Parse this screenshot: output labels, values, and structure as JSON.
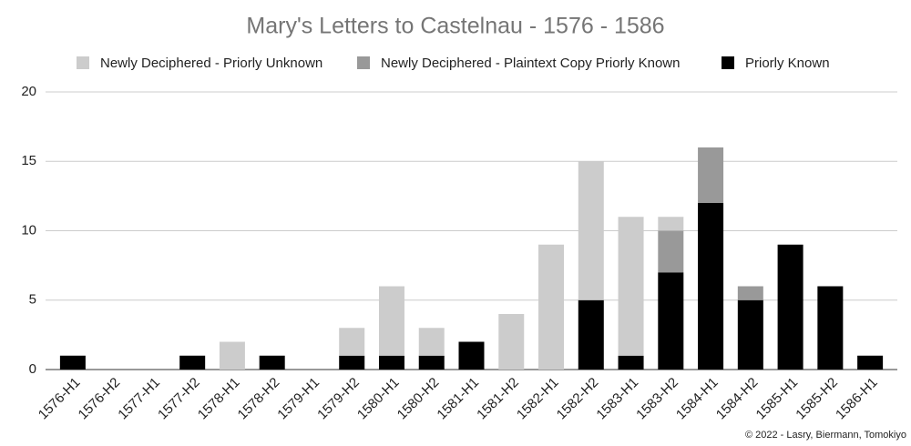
{
  "chart_data": {
    "type": "stacked_bar",
    "title": "Mary's Letters to Castelnau - 1576 - 1586",
    "credit": "© 2022 - Lasry, Biermann, Tomokiyo",
    "categories": [
      "1576-H1",
      "1576-H2",
      "1577-H1",
      "1577-H2",
      "1578-H1",
      "1578-H2",
      "1579-H1",
      "1579-H2",
      "1580-H1",
      "1580-H2",
      "1581-H1",
      "1581-H2",
      "1582-H1",
      "1582-H2",
      "1583-H1",
      "1583-H2",
      "1584-H1",
      "1584-H2",
      "1585-H1",
      "1585-H2",
      "1586-H1"
    ],
    "series": [
      {
        "name": "Newly Deciphered - Priorly Unknown",
        "color": "#cccccc",
        "values": [
          0,
          0,
          0,
          0,
          2,
          0,
          0,
          2,
          5,
          2,
          0,
          4,
          9,
          10,
          10,
          1,
          0,
          0,
          0,
          0,
          0
        ]
      },
      {
        "name": "Newly Deciphered - Plaintext Copy Priorly Known",
        "color": "#999999",
        "values": [
          0,
          0,
          0,
          0,
          0,
          0,
          0,
          0,
          0,
          0,
          0,
          0,
          0,
          0,
          0,
          3,
          4,
          1,
          0,
          0,
          0
        ]
      },
      {
        "name": "Priorly Known",
        "color": "#000000",
        "values": [
          1,
          0,
          0,
          1,
          0,
          1,
          0,
          1,
          1,
          1,
          2,
          0,
          0,
          5,
          1,
          7,
          12,
          5,
          9,
          6,
          1
        ]
      }
    ],
    "ylim": [
      0,
      20
    ],
    "yticks": [
      0,
      5,
      10,
      15,
      20
    ],
    "grid": true,
    "legend": "top"
  }
}
